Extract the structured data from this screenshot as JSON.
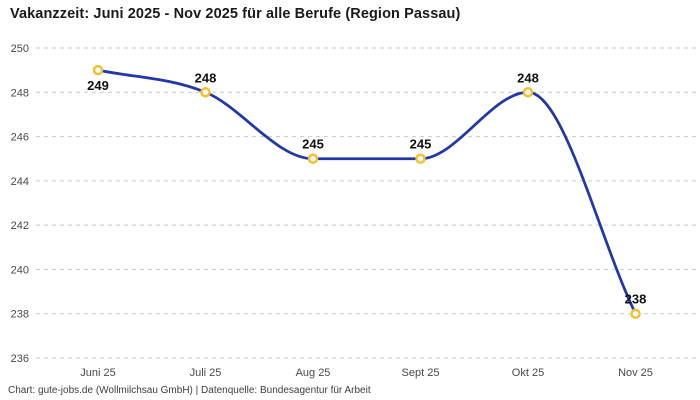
{
  "chart_data": {
    "type": "line",
    "title": "Vakanzzeit: Juni 2025 - Nov 2025 für alle Berufe (Region Passau)",
    "categories": [
      "Juni 25",
      "Juli 25",
      "Aug 25",
      "Sept 25",
      "Okt 25",
      "Nov 25"
    ],
    "values": [
      249,
      248,
      245,
      245,
      248,
      238
    ],
    "value_labels": [
      "249",
      "248",
      "245",
      "245",
      "248",
      "238"
    ],
    "value_label_positions": [
      "below",
      "above",
      "above",
      "above",
      "above",
      "above"
    ],
    "xlabel": "",
    "ylabel": "",
    "ylim": [
      236,
      250
    ],
    "yticks": [
      250,
      248,
      246,
      244,
      242,
      240,
      238,
      236
    ],
    "grid": "horizontal-dashed",
    "legend": "none",
    "line_smoothing": "monotone",
    "marker": "open-circle",
    "colors": {
      "line": "#2038a8",
      "marker_stroke": "#f7bf2e",
      "marker_fill": "#ffffff",
      "grid": "#c9c9c9",
      "tick_label": "#494949",
      "value_label": "#111111",
      "title": "#1a1a1a",
      "footer": "#3d3d3d",
      "background": "#ffffff"
    }
  },
  "footer": {
    "text": "Chart: gute-jobs.de (Wollmilchsau GmbH) | Datenquelle: Bundesagentur für Arbeit"
  }
}
